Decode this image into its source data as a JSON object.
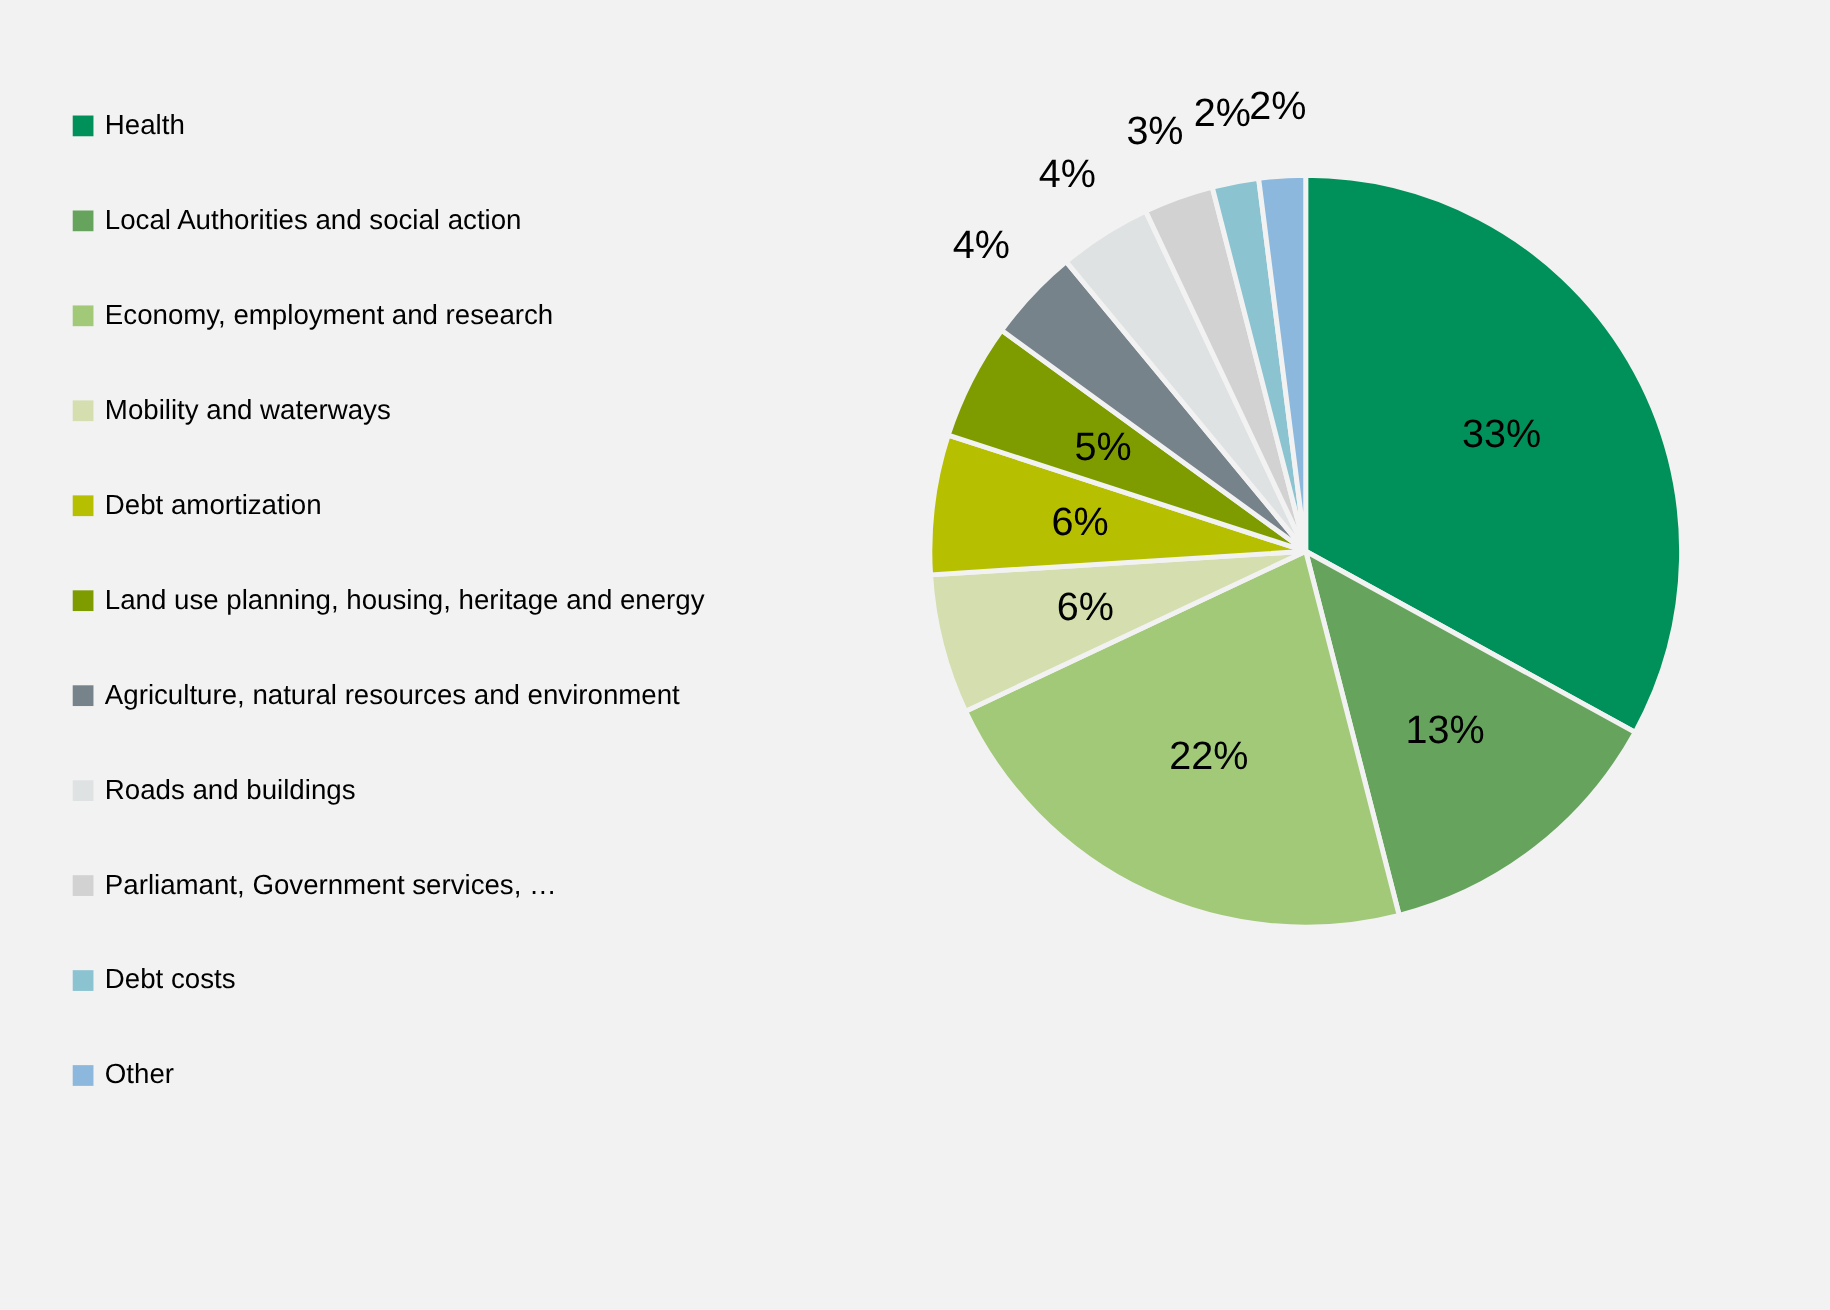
{
  "chart_data": {
    "type": "pie",
    "categories": [
      "Health",
      "Local Authorities and social action",
      "Economy, employment and research",
      "Mobility and waterways",
      "Debt amortization",
      "Land use planning, housing, heritage and energy",
      "Agriculture, natural resources and environment",
      "Roads and buildings",
      "Parliamant, Government services, …",
      "Debt costs",
      "Other"
    ],
    "values": [
      33,
      13,
      22,
      6,
      6,
      5,
      4,
      4,
      3,
      2,
      2
    ],
    "value_labels": [
      "33%",
      "13%",
      "22%",
      "6%",
      "6%",
      "5%",
      "4%",
      "4%",
      "3%",
      "2%",
      "2%"
    ],
    "colors": [
      "#00915a",
      "#66a45d",
      "#a1c978",
      "#d4deae",
      "#b6bf00",
      "#7e9c00",
      "#77838a",
      "#dfe2e3",
      "#d3d2d2",
      "#8bc3d1",
      "#8bb8dc"
    ],
    "legend": "left"
  }
}
